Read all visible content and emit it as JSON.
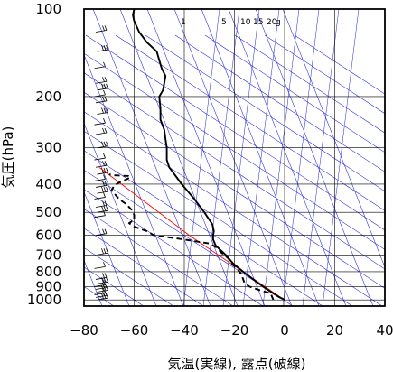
{
  "chart_data": {
    "type": "line",
    "title": "",
    "xlabel": "気温(実線), 露点(破線)",
    "ylabel": "気圧(hPa)",
    "xlim": [
      -80,
      40
    ],
    "ylim": [
      1050,
      100
    ],
    "yscale": "log",
    "x_ticks": [
      -80,
      -60,
      -40,
      -20,
      0,
      20,
      40
    ],
    "y_ticks": [
      100,
      200,
      300,
      400,
      500,
      600,
      700,
      800,
      900,
      1000
    ],
    "grid": true,
    "mixing_ratio_labels": [
      "1",
      "5",
      "10",
      "15",
      "20",
      "g"
    ],
    "series": [
      {
        "style": "solid",
        "points": [
          [
            1000,
            0.2
          ],
          [
            975,
            -2.5
          ],
          [
            950,
            -4.5
          ],
          [
            925,
            -6.5
          ],
          [
            900,
            -8.6
          ],
          [
            850,
            -12.5
          ],
          [
            800,
            -16.5
          ],
          [
            750,
            -20.5
          ],
          [
            700,
            -23.5
          ],
          [
            650,
            -27.5
          ],
          [
            620,
            -28.5
          ],
          [
            600,
            -28.5
          ],
          [
            580,
            -28.2
          ],
          [
            550,
            -28.8
          ],
          [
            500,
            -32
          ],
          [
            450,
            -36
          ],
          [
            400,
            -41
          ],
          [
            350,
            -46
          ],
          [
            330,
            -47
          ],
          [
            300,
            -47
          ],
          [
            280,
            -47.5
          ],
          [
            260,
            -48
          ],
          [
            240,
            -49.5
          ],
          [
            220,
            -49.5
          ],
          [
            200,
            -50
          ],
          [
            190,
            -48.5
          ],
          [
            180,
            -48
          ],
          [
            170,
            -47.5
          ],
          [
            160,
            -49
          ],
          [
            150,
            -50
          ],
          [
            140,
            -51
          ],
          [
            130,
            -55
          ],
          [
            120,
            -58
          ],
          [
            110,
            -60
          ],
          [
            105,
            -60.5
          ],
          [
            100,
            -60
          ]
        ]
      },
      {
        "style": "dashed",
        "points": [
          [
            1000,
            -4.5
          ],
          [
            975,
            -5
          ],
          [
            950,
            -5.5
          ],
          [
            925,
            -10
          ],
          [
            900,
            -14
          ],
          [
            875,
            -16
          ],
          [
            850,
            -16.5
          ],
          [
            825,
            -17
          ],
          [
            800,
            -18
          ],
          [
            780,
            -19
          ],
          [
            760,
            -20.5
          ],
          [
            720,
            -22.5
          ],
          [
            690,
            -25
          ],
          [
            660,
            -27.2
          ],
          [
            640,
            -30
          ],
          [
            620,
            -40
          ],
          [
            600,
            -52
          ],
          [
            580,
            -55
          ],
          [
            560,
            -60
          ],
          [
            545,
            -62
          ],
          [
            530,
            -60
          ],
          [
            510,
            -60
          ],
          [
            490,
            -61
          ],
          [
            470,
            -63
          ],
          [
            450,
            -66
          ],
          [
            430,
            -68
          ],
          [
            420,
            -69
          ],
          [
            405,
            -68
          ],
          [
            395,
            -66
          ],
          [
            385,
            -63
          ],
          [
            378,
            -61.5
          ],
          [
            375,
            -62.2
          ],
          [
            373,
            -68
          ],
          [
            370,
            -70
          ]
        ]
      }
    ],
    "reference_line": {
      "color": "#ff0000",
      "points": [
        [
          1000,
          0
        ],
        [
          600,
          -38
        ],
        [
          350,
          -74
        ]
      ]
    },
    "colors": {
      "isopleths": "#2222dd",
      "reference": "#ff0000",
      "profile": "#000000",
      "grid": "#000000"
    }
  }
}
